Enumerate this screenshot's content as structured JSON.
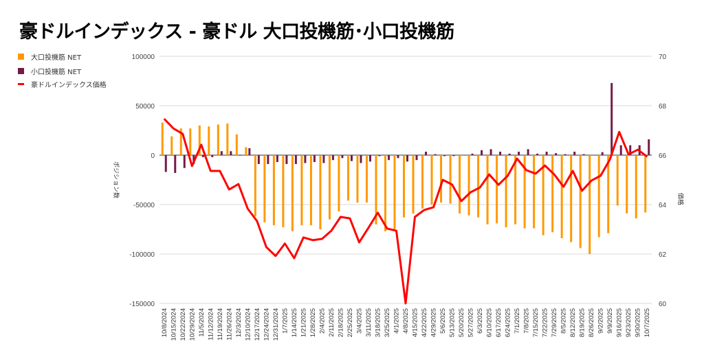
{
  "chart_data": {
    "type": "bar+line",
    "title": "豪ドルインデックス - 豪ドル 大口投機筋･小口投機筋",
    "ylabel_left": "ポジション数",
    "ylabel_right": "価格",
    "ylim_left": [
      -150000,
      100000
    ],
    "ylim_right": [
      60,
      70
    ],
    "yticks_left": [
      "100000",
      "50000",
      "0",
      "-50000",
      "-100000",
      "-150000"
    ],
    "yticks_right": [
      "70",
      "68",
      "66",
      "64",
      "62",
      "60"
    ],
    "legend_position": "top-left",
    "grid": true,
    "categories": [
      "10/8/2024",
      "10/15/2024",
      "10/22/2024",
      "10/29/2024",
      "11/5/2024",
      "11/12/2024",
      "11/19/2024",
      "11/26/2024",
      "12/3/2024",
      "12/10/2024",
      "12/17/2024",
      "12/24/2024",
      "12/31/2024",
      "1/7/2025",
      "1/14/2025",
      "1/21/2025",
      "1/28/2025",
      "2/4/2025",
      "2/11/2025",
      "2/18/2025",
      "2/25/2025",
      "3/4/2025",
      "3/11/2025",
      "3/18/2025",
      "3/25/2025",
      "4/1/2025",
      "4/8/2025",
      "4/15/2025",
      "4/22/2025",
      "4/29/2025",
      "5/6/2025",
      "5/13/2025",
      "5/20/2025",
      "5/27/2025",
      "6/3/2025",
      "6/10/2025",
      "6/17/2025",
      "6/24/2025",
      "7/1/2025",
      "7/8/2025",
      "7/15/2025",
      "7/22/2025",
      "7/29/2025",
      "8/5/2025",
      "8/12/2025",
      "8/19/2025",
      "8/26/2025",
      "9/2/2025",
      "9/9/2025",
      "9/16/2025",
      "9/23/2025",
      "9/30/2025",
      "10/7/2025"
    ],
    "series": [
      {
        "name": "大口投機筋  NET",
        "type": "bar",
        "axis": "left",
        "color": "#ff9900",
        "values": [
          33000,
          19000,
          27000,
          27000,
          30000,
          29000,
          31000,
          32000,
          21000,
          8000,
          -62000,
          -68000,
          -71000,
          -73000,
          -77000,
          -71000,
          -71000,
          -75000,
          -65000,
          -57000,
          -46000,
          -48000,
          -48000,
          -70000,
          -77000,
          -75000,
          -63000,
          -59000,
          -54000,
          -50000,
          -48000,
          -49000,
          -59000,
          -61000,
          -63000,
          -70000,
          -69000,
          -73000,
          -70000,
          -74000,
          -74000,
          -81000,
          -78000,
          -84000,
          -88000,
          -94000,
          -100000,
          -83000,
          -79000,
          -51000,
          -59000,
          -64000,
          -58000
        ]
      },
      {
        "name": "小口投機筋  NET",
        "type": "bar",
        "axis": "left",
        "color": "#741b47",
        "values": [
          -17000,
          -18000,
          -13000,
          -9000,
          -2000,
          -2000,
          4000,
          4000,
          -500,
          7000,
          -9000,
          -9000,
          -7000,
          -9000,
          -9000,
          -8000,
          -7000,
          -8000,
          -5000,
          -3000,
          -6000,
          -8000,
          -6500,
          -1000,
          -5000,
          -3000,
          -6500,
          -5000,
          3500,
          1000,
          -1000,
          -1000,
          0,
          1500,
          5000,
          6000,
          3500,
          1500,
          3500,
          6000,
          1500,
          3500,
          2000,
          1000,
          3500,
          1000,
          0,
          3000,
          73000,
          10000,
          10000,
          10000,
          16000
        ]
      },
      {
        "name": "豪ドルインデックス価格",
        "type": "line",
        "axis": "right",
        "color": "#ff0000",
        "values": [
          67.47,
          67.08,
          66.86,
          65.56,
          66.42,
          65.36,
          65.36,
          64.61,
          64.83,
          63.83,
          63.33,
          62.28,
          61.92,
          62.42,
          61.83,
          62.67,
          62.56,
          62.61,
          62.94,
          63.5,
          63.44,
          62.47,
          63.06,
          63.67,
          63.03,
          62.94,
          60.0,
          63.5,
          63.78,
          63.89,
          65.0,
          64.81,
          64.14,
          64.5,
          64.69,
          65.22,
          64.8,
          65.17,
          65.86,
          65.39,
          65.25,
          65.58,
          65.22,
          64.72,
          65.36,
          64.56,
          64.97,
          65.17,
          65.83,
          66.94,
          66.03,
          66.22,
          65.94
        ]
      }
    ]
  }
}
